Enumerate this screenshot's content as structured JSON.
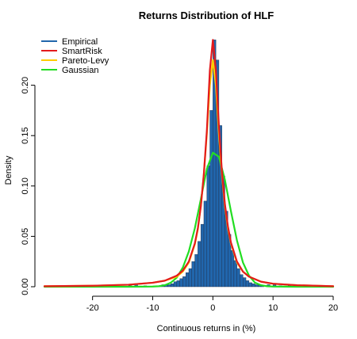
{
  "chart_data": {
    "type": "histogram",
    "title": "Returns Distribution of HLF",
    "xlabel": "Continuous returns in (%)",
    "ylabel": "Density",
    "xlim": [
      -28,
      20
    ],
    "ylim": [
      0,
      0.25
    ],
    "x_ticks": [
      -20,
      -10,
      0,
      10,
      20
    ],
    "y_ticks": [
      0.0,
      0.05,
      0.1,
      0.15,
      0.2
    ],
    "y_tick_labels": [
      "0.00",
      "0.05",
      "0.10",
      "0.15",
      "0.20"
    ],
    "legend_placement": "top-left",
    "histogram": {
      "name": "Empirical",
      "color": "#2166ac",
      "edge_color": "#1f2a44",
      "bin_width": 0.5,
      "bins": [
        {
          "x": -28.0,
          "density": 0.001
        },
        {
          "x": -25.0,
          "density": 0.001
        },
        {
          "x": -23.0,
          "density": 0.001
        },
        {
          "x": -21.0,
          "density": 0.001
        },
        {
          "x": -16.5,
          "density": 0.001
        },
        {
          "x": -14.0,
          "density": 0.001
        },
        {
          "x": -13.0,
          "density": 0.003
        },
        {
          "x": -11.5,
          "density": 0.001
        },
        {
          "x": -9.5,
          "density": 0.001
        },
        {
          "x": -9.0,
          "density": 0.001
        },
        {
          "x": -8.5,
          "density": 0.002
        },
        {
          "x": -8.0,
          "density": 0.002
        },
        {
          "x": -7.5,
          "density": 0.002
        },
        {
          "x": -7.0,
          "density": 0.003
        },
        {
          "x": -6.5,
          "density": 0.005
        },
        {
          "x": -6.0,
          "density": 0.006
        },
        {
          "x": -5.5,
          "density": 0.008
        },
        {
          "x": -5.0,
          "density": 0.01
        },
        {
          "x": -4.5,
          "density": 0.014
        },
        {
          "x": -4.0,
          "density": 0.018
        },
        {
          "x": -3.5,
          "density": 0.025
        },
        {
          "x": -3.0,
          "density": 0.032
        },
        {
          "x": -2.5,
          "density": 0.045
        },
        {
          "x": -2.0,
          "density": 0.062
        },
        {
          "x": -1.5,
          "density": 0.085
        },
        {
          "x": -1.0,
          "density": 0.12
        },
        {
          "x": -0.5,
          "density": 0.175
        },
        {
          "x": 0.0,
          "density": 0.245
        },
        {
          "x": 0.5,
          "density": 0.225
        },
        {
          "x": 1.0,
          "density": 0.16
        },
        {
          "x": 1.5,
          "density": 0.11
        },
        {
          "x": 2.0,
          "density": 0.075
        },
        {
          "x": 2.5,
          "density": 0.052
        },
        {
          "x": 3.0,
          "density": 0.036
        },
        {
          "x": 3.5,
          "density": 0.026
        },
        {
          "x": 4.0,
          "density": 0.018
        },
        {
          "x": 4.5,
          "density": 0.012
        },
        {
          "x": 5.0,
          "density": 0.009
        },
        {
          "x": 5.5,
          "density": 0.006
        },
        {
          "x": 6.0,
          "density": 0.004
        },
        {
          "x": 6.5,
          "density": 0.003
        },
        {
          "x": 7.0,
          "density": 0.002
        },
        {
          "x": 7.5,
          "density": 0.002
        },
        {
          "x": 8.0,
          "density": 0.001
        },
        {
          "x": 9.0,
          "density": 0.002
        },
        {
          "x": 10.0,
          "density": 0.002
        },
        {
          "x": 11.0,
          "density": 0.001
        },
        {
          "x": 12.5,
          "density": 0.001
        },
        {
          "x": 14.0,
          "density": 0.001
        },
        {
          "x": 15.5,
          "density": 0.001
        },
        {
          "x": 17.5,
          "density": 0.001
        },
        {
          "x": 19.5,
          "density": 0.001
        }
      ]
    },
    "series": [
      {
        "name": "SmartRisk",
        "color": "#e31a1c",
        "x": [
          -28,
          -20,
          -14,
          -10,
          -8,
          -6,
          -5,
          -4,
          -3,
          -2.5,
          -2,
          -1.5,
          -1,
          -0.5,
          0,
          0.5,
          1,
          1.5,
          2,
          2.5,
          3,
          4,
          5,
          6,
          8,
          10,
          14,
          20
        ],
        "values": [
          0.0005,
          0.001,
          0.002,
          0.004,
          0.006,
          0.011,
          0.016,
          0.025,
          0.043,
          0.058,
          0.08,
          0.112,
          0.155,
          0.215,
          0.245,
          0.215,
          0.16,
          0.115,
          0.082,
          0.06,
          0.044,
          0.025,
          0.015,
          0.01,
          0.005,
          0.003,
          0.0015,
          0.0005
        ]
      },
      {
        "name": "Pareto-Levy",
        "color": "#ffcc00",
        "x": [
          -28,
          -20,
          -14,
          -10,
          -8,
          -6,
          -5,
          -4,
          -3,
          -2.5,
          -2,
          -1.5,
          -1,
          -0.5,
          0,
          0.5,
          1,
          1.5,
          2,
          2.5,
          3,
          4,
          5,
          6,
          8,
          10,
          14,
          20
        ],
        "values": [
          0.0005,
          0.001,
          0.002,
          0.004,
          0.006,
          0.01,
          0.015,
          0.024,
          0.042,
          0.057,
          0.08,
          0.112,
          0.152,
          0.2,
          0.225,
          0.2,
          0.152,
          0.112,
          0.08,
          0.058,
          0.043,
          0.024,
          0.015,
          0.01,
          0.005,
          0.003,
          0.0015,
          0.0005
        ]
      },
      {
        "name": "Gaussian",
        "color": "#22dd22",
        "x": [
          -28,
          -20,
          -14,
          -10,
          -9,
          -8,
          -7,
          -6,
          -5,
          -4,
          -3,
          -2,
          -1,
          0,
          1,
          2,
          3,
          4,
          5,
          6,
          7,
          8,
          9,
          10,
          14,
          20
        ],
        "values": [
          0.0,
          0.0,
          0.0,
          0.0002,
          0.0005,
          0.0015,
          0.004,
          0.009,
          0.019,
          0.035,
          0.058,
          0.087,
          0.117,
          0.133,
          0.129,
          0.106,
          0.075,
          0.046,
          0.024,
          0.011,
          0.004,
          0.0015,
          0.0005,
          0.0002,
          0.0,
          0.0
        ]
      }
    ]
  }
}
